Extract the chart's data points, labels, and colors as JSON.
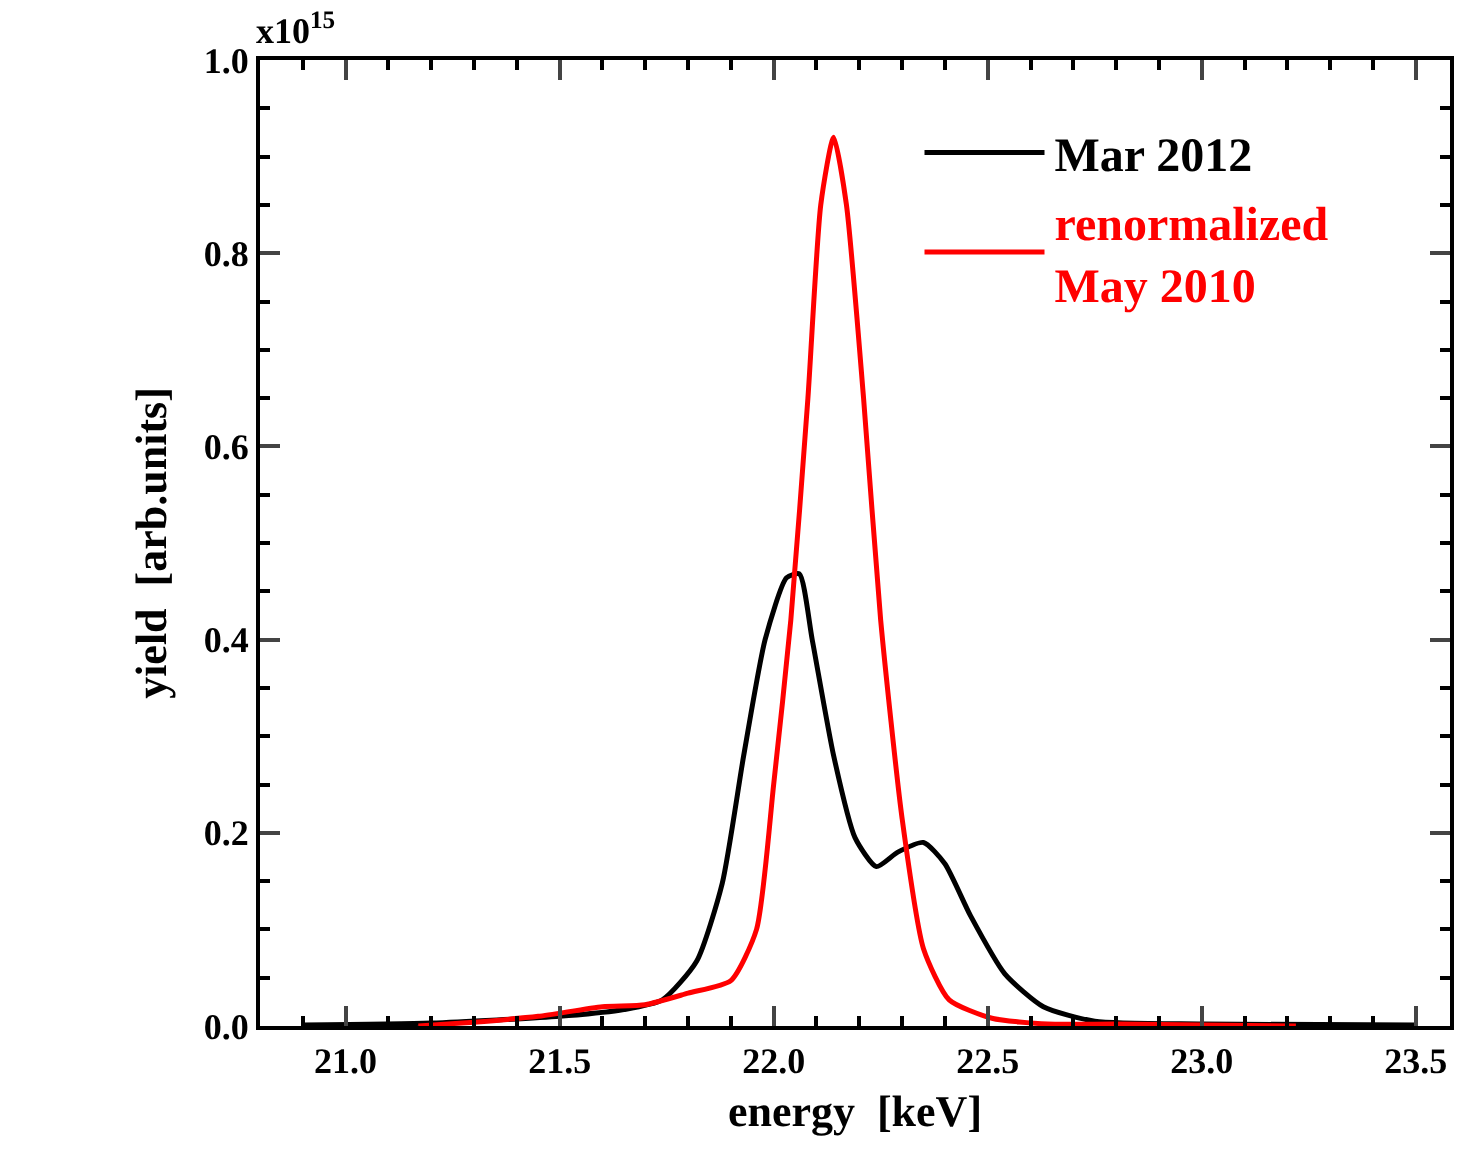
{
  "chart_data": {
    "type": "line",
    "xlabel": "energy  [keV]",
    "ylabel": "yield  [arb.units]",
    "xlim": [
      20.8,
      23.58
    ],
    "xticks": [
      {
        "value": 21,
        "label": "21.0"
      },
      {
        "value": 21.5,
        "label": "21.5"
      },
      {
        "value": 22,
        "label": "22.0"
      },
      {
        "value": 22.5,
        "label": "22.5"
      },
      {
        "value": 23,
        "label": "23.0"
      },
      {
        "value": 23.5,
        "label": "23.5"
      }
    ],
    "ylim": [
      0,
      1
    ],
    "yticks": [
      {
        "value": 0,
        "label": "0.0"
      },
      0.2,
      0.4,
      0.6,
      0.8,
      {
        "value": 1,
        "label": "1.0"
      }
    ],
    "annotations": [
      "x10$^{15}$"
    ],
    "grid": false,
    "legend": "top right",
    "marker": "none",
    "line_style": "solid",
    "series": [
      {
        "name": "Mar 2012",
        "color": "#000000",
        "x": [
          20.9,
          21.2,
          21.5,
          21.65,
          21.74,
          21.82,
          21.88,
          21.93,
          21.98,
          22.03,
          22.06,
          22.09,
          22.14,
          22.19,
          22.24,
          22.29,
          22.35,
          22.4,
          22.46,
          22.54,
          22.63,
          22.75,
          23.0,
          23.5
        ],
        "values": [
          0.001,
          0.003,
          0.01,
          0.017,
          0.027,
          0.067,
          0.148,
          0.28,
          0.4,
          0.464,
          0.468,
          0.4,
          0.28,
          0.195,
          0.165,
          0.18,
          0.19,
          0.168,
          0.114,
          0.054,
          0.02,
          0.005,
          0.002,
          0.001
        ]
      },
      {
        "name": "renormalized\nMay 2010",
        "color": "#ff0000",
        "x": [
          21.17,
          21.3,
          21.45,
          21.6,
          21.7,
          21.8,
          21.9,
          21.96,
          22.0,
          22.04,
          22.08,
          22.11,
          22.14,
          22.17,
          22.21,
          22.25,
          22.3,
          22.35,
          22.41,
          22.51,
          22.64,
          22.8,
          23.0,
          23.22
        ],
        "values": [
          0,
          0.004,
          0.01,
          0.02,
          0.022,
          0.034,
          0.047,
          0.1,
          0.25,
          0.42,
          0.65,
          0.85,
          0.92,
          0.85,
          0.65,
          0.42,
          0.215,
          0.08,
          0.027,
          0.008,
          0.002,
          0.002,
          0.001,
          0
        ]
      }
    ]
  }
}
